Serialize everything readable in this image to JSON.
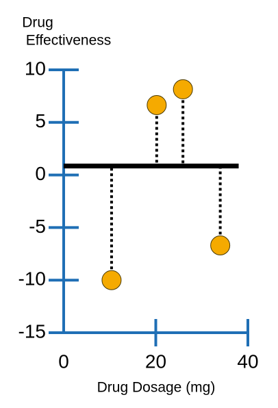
{
  "chart_data": {
    "type": "scatter",
    "ylabel": [
      "Drug",
      "Effectiveness"
    ],
    "xlabel": "Drug Dosage (mg)",
    "x": [
      10.4,
      20.2,
      25.9,
      34
    ],
    "values": [
      -10,
      6.65,
      8.15,
      -6.7
    ],
    "color": "#f5aa00",
    "axis_color": "#1f6fb5",
    "reference_line": {
      "y": 0.85,
      "x": [
        0,
        38
      ],
      "color": "#000000"
    },
    "xlim": [
      0,
      40
    ],
    "xticks": [
      0,
      20,
      40
    ],
    "ylim": [
      -15,
      10
    ],
    "yticks": [
      -15,
      -10,
      -5,
      0,
      5,
      10
    ]
  }
}
